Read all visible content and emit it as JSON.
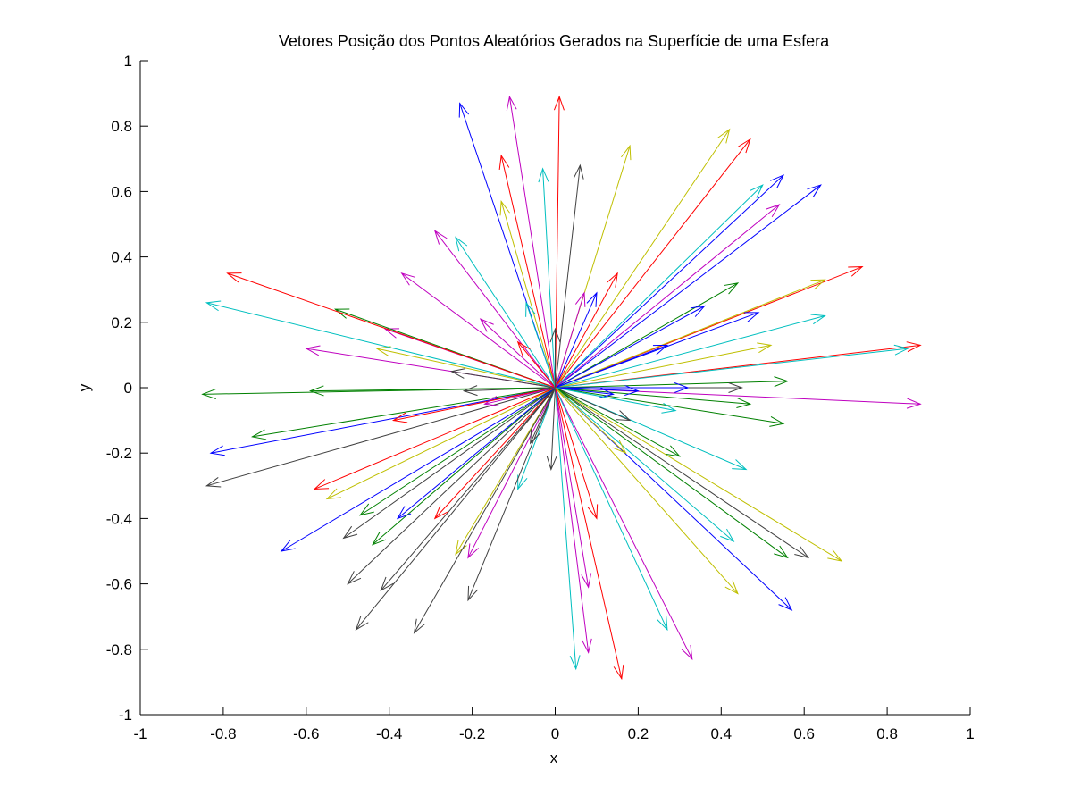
{
  "chart_data": {
    "type": "quiver",
    "title": "Vetores Posição dos Pontos Aleatórios Gerados na Superfície de uma Esfera",
    "xlabel": "x",
    "ylabel": "y",
    "xlim": [
      -1,
      1
    ],
    "ylim": [
      -1,
      1
    ],
    "xticks": [
      "-1",
      "-0.8",
      "-0.6",
      "-0.4",
      "-0.2",
      "0",
      "0.2",
      "0.4",
      "0.6",
      "0.8",
      "1"
    ],
    "yticks": [
      "-1",
      "-0.8",
      "-0.6",
      "-0.4",
      "-0.2",
      "0",
      "0.2",
      "0.4",
      "0.6",
      "0.8",
      "1"
    ],
    "grid": false,
    "origin": [
      0,
      0
    ],
    "vectors": [
      {
        "x": 0.01,
        "y": 0.89,
        "color": "#ff0000"
      },
      {
        "x": -0.11,
        "y": 0.89,
        "color": "#bf00bf"
      },
      {
        "x": -0.23,
        "y": 0.87,
        "color": "#0000ff"
      },
      {
        "x": -0.13,
        "y": 0.71,
        "color": "#ff0000"
      },
      {
        "x": -0.03,
        "y": 0.67,
        "color": "#00bfbf"
      },
      {
        "x": 0.06,
        "y": 0.68,
        "color": "#404040"
      },
      {
        "x": 0.18,
        "y": 0.74,
        "color": "#bfbf00"
      },
      {
        "x": 0.42,
        "y": 0.79,
        "color": "#bfbf00"
      },
      {
        "x": 0.47,
        "y": 0.76,
        "color": "#ff0000"
      },
      {
        "x": 0.55,
        "y": 0.65,
        "color": "#0000ff"
      },
      {
        "x": 0.64,
        "y": 0.62,
        "color": "#0000ff"
      },
      {
        "x": 0.5,
        "y": 0.62,
        "color": "#00bfbf"
      },
      {
        "x": 0.54,
        "y": 0.56,
        "color": "#bf00bf"
      },
      {
        "x": 0.74,
        "y": 0.37,
        "color": "#ff0000"
      },
      {
        "x": 0.65,
        "y": 0.33,
        "color": "#bfbf00"
      },
      {
        "x": 0.44,
        "y": 0.32,
        "color": "#008000"
      },
      {
        "x": 0.36,
        "y": 0.25,
        "color": "#0000ff"
      },
      {
        "x": 0.49,
        "y": 0.23,
        "color": "#0000ff"
      },
      {
        "x": 0.65,
        "y": 0.22,
        "color": "#00bfbf"
      },
      {
        "x": 0.52,
        "y": 0.13,
        "color": "#bfbf00"
      },
      {
        "x": 0.88,
        "y": 0.13,
        "color": "#ff0000"
      },
      {
        "x": 0.85,
        "y": 0.12,
        "color": "#00bfbf"
      },
      {
        "x": 0.56,
        "y": 0.02,
        "color": "#008000"
      },
      {
        "x": 0.45,
        "y": 0.0,
        "color": "#404040"
      },
      {
        "x": 0.32,
        "y": 0.0,
        "color": "#0000ff"
      },
      {
        "x": 0.88,
        "y": -0.05,
        "color": "#bf00bf"
      },
      {
        "x": 0.47,
        "y": -0.05,
        "color": "#008000"
      },
      {
        "x": 0.55,
        "y": -0.11,
        "color": "#008000"
      },
      {
        "x": 0.46,
        "y": -0.25,
        "color": "#00bfbf"
      },
      {
        "x": 0.69,
        "y": -0.53,
        "color": "#bfbf00"
      },
      {
        "x": 0.61,
        "y": -0.52,
        "color": "#404040"
      },
      {
        "x": 0.56,
        "y": -0.52,
        "color": "#008000"
      },
      {
        "x": 0.43,
        "y": -0.47,
        "color": "#00bfbf"
      },
      {
        "x": 0.57,
        "y": -0.68,
        "color": "#0000ff"
      },
      {
        "x": 0.44,
        "y": -0.63,
        "color": "#bfbf00"
      },
      {
        "x": 0.33,
        "y": -0.83,
        "color": "#bf00bf"
      },
      {
        "x": 0.27,
        "y": -0.74,
        "color": "#00bfbf"
      },
      {
        "x": 0.16,
        "y": -0.89,
        "color": "#ff0000"
      },
      {
        "x": 0.08,
        "y": -0.81,
        "color": "#bf00bf"
      },
      {
        "x": 0.05,
        "y": -0.86,
        "color": "#00bfbf"
      },
      {
        "x": 0.08,
        "y": -0.61,
        "color": "#bf00bf"
      },
      {
        "x": 0.1,
        "y": -0.4,
        "color": "#ff0000"
      },
      {
        "x": -0.01,
        "y": -0.25,
        "color": "#404040"
      },
      {
        "x": -0.09,
        "y": -0.31,
        "color": "#00bfbf"
      },
      {
        "x": -0.21,
        "y": -0.65,
        "color": "#404040"
      },
      {
        "x": -0.21,
        "y": -0.52,
        "color": "#bf00bf"
      },
      {
        "x": -0.24,
        "y": -0.51,
        "color": "#bfbf00"
      },
      {
        "x": -0.29,
        "y": -0.4,
        "color": "#ff0000"
      },
      {
        "x": -0.34,
        "y": -0.75,
        "color": "#404040"
      },
      {
        "x": -0.48,
        "y": -0.74,
        "color": "#404040"
      },
      {
        "x": -0.42,
        "y": -0.62,
        "color": "#404040"
      },
      {
        "x": -0.5,
        "y": -0.6,
        "color": "#404040"
      },
      {
        "x": -0.44,
        "y": -0.48,
        "color": "#008000"
      },
      {
        "x": -0.51,
        "y": -0.46,
        "color": "#404040"
      },
      {
        "x": -0.38,
        "y": -0.4,
        "color": "#0000ff"
      },
      {
        "x": -0.47,
        "y": -0.39,
        "color": "#008000"
      },
      {
        "x": -0.66,
        "y": -0.5,
        "color": "#0000ff"
      },
      {
        "x": -0.55,
        "y": -0.34,
        "color": "#bfbf00"
      },
      {
        "x": -0.58,
        "y": -0.31,
        "color": "#ff0000"
      },
      {
        "x": -0.84,
        "y": -0.3,
        "color": "#404040"
      },
      {
        "x": -0.83,
        "y": -0.2,
        "color": "#0000ff"
      },
      {
        "x": -0.73,
        "y": -0.15,
        "color": "#008000"
      },
      {
        "x": -0.39,
        "y": -0.1,
        "color": "#ff0000"
      },
      {
        "x": -0.85,
        "y": -0.02,
        "color": "#008000"
      },
      {
        "x": -0.59,
        "y": -0.01,
        "color": "#008000"
      },
      {
        "x": -0.6,
        "y": 0.12,
        "color": "#bf00bf"
      },
      {
        "x": -0.43,
        "y": 0.12,
        "color": "#bfbf00"
      },
      {
        "x": -0.25,
        "y": 0.05,
        "color": "#404040"
      },
      {
        "x": -0.41,
        "y": 0.18,
        "color": "#bf00bf"
      },
      {
        "x": -0.84,
        "y": 0.26,
        "color": "#00bfbf"
      },
      {
        "x": -0.53,
        "y": 0.24,
        "color": "#008000"
      },
      {
        "x": -0.79,
        "y": 0.35,
        "color": "#ff0000"
      },
      {
        "x": -0.37,
        "y": 0.35,
        "color": "#bf00bf"
      },
      {
        "x": -0.29,
        "y": 0.48,
        "color": "#bf00bf"
      },
      {
        "x": -0.24,
        "y": 0.46,
        "color": "#00bfbf"
      },
      {
        "x": -0.13,
        "y": 0.57,
        "color": "#bfbf00"
      },
      {
        "x": -0.18,
        "y": 0.21,
        "color": "#bf00bf"
      },
      {
        "x": -0.09,
        "y": 0.14,
        "color": "#ff0000"
      },
      {
        "x": -0.07,
        "y": 0.26,
        "color": "#00bfbf"
      },
      {
        "x": 0.07,
        "y": 0.29,
        "color": "#bf00bf"
      },
      {
        "x": 0.1,
        "y": 0.29,
        "color": "#0000ff"
      },
      {
        "x": 0.15,
        "y": 0.35,
        "color": "#ff0000"
      },
      {
        "x": 0.0,
        "y": 0.18,
        "color": "#404040"
      },
      {
        "x": 0.27,
        "y": 0.13,
        "color": "#0000ff"
      },
      {
        "x": 0.14,
        "y": -0.02,
        "color": "#0000ff"
      },
      {
        "x": 0.2,
        "y": -0.01,
        "color": "#0000ff"
      },
      {
        "x": 0.18,
        "y": -0.1,
        "color": "#404040"
      },
      {
        "x": 0.29,
        "y": -0.07,
        "color": "#00bfbf"
      },
      {
        "x": 0.3,
        "y": -0.21,
        "color": "#008000"
      },
      {
        "x": 0.17,
        "y": -0.2,
        "color": "#bfbf00"
      },
      {
        "x": -0.06,
        "y": -0.17,
        "color": "#404040"
      },
      {
        "x": -0.17,
        "y": -0.05,
        "color": "#bf00bf"
      },
      {
        "x": -0.22,
        "y": -0.01,
        "color": "#404040"
      }
    ]
  }
}
